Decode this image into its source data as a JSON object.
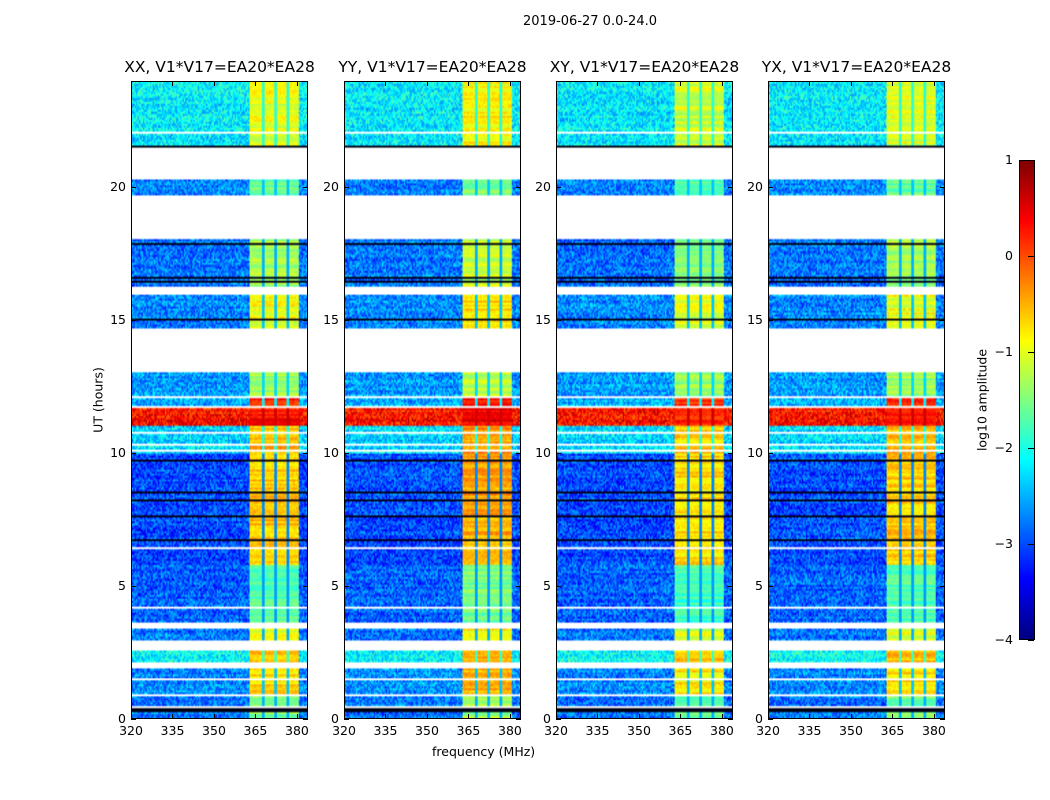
{
  "chart_data": {
    "type": "heatmap",
    "title": "2019-06-27 0.0-24.0",
    "xlabel": "frequency (MHz)",
    "ylabel": "UT (hours)",
    "xlim": [
      320,
      384
    ],
    "ylim": [
      0,
      24
    ],
    "xticks": [
      "320",
      "335",
      "350",
      "365",
      "380"
    ],
    "xtick_values": [
      320,
      335,
      350,
      365,
      380
    ],
    "yticks": [
      "0",
      "5",
      "10",
      "15",
      "20"
    ],
    "ytick_values": [
      0,
      5,
      10,
      15,
      20
    ],
    "panels": [
      {
        "title": "XX, V1*V17=EA20*EA28",
        "band_offset": 0.0
      },
      {
        "title": "YY, V1*V17=EA20*EA28",
        "band_offset": 0.15
      },
      {
        "title": "XY, V1*V17=EA20*EA28",
        "band_offset": -0.1
      },
      {
        "title": "YX, V1*V17=EA20*EA28",
        "band_offset": -0.05
      }
    ],
    "colorbar": {
      "label": "log10 amplitude",
      "range": [
        -4,
        1
      ],
      "ticks": [
        "1",
        "0",
        "−1",
        "−2",
        "−3",
        "−4"
      ],
      "tick_values": [
        1,
        0,
        -1,
        -2,
        -3,
        -4
      ],
      "colormap": "jet"
    },
    "band_mhz": [
      363,
      381
    ],
    "band_gaps_mhz": [
      368,
      372.5,
      377
    ],
    "flagged_hours": [
      [
        20.3,
        21.5
      ],
      [
        18.05,
        19.7
      ],
      [
        15.95,
        16.3
      ],
      [
        13.05,
        14.7
      ],
      [
        3.35,
        3.6
      ],
      [
        2.6,
        2.9
      ],
      [
        0.8,
        0.9
      ]
    ],
    "segments_hours_bg_band": [
      [
        21.5,
        24.0,
        -2.2,
        -1.0
      ],
      [
        19.7,
        20.3,
        -2.7,
        -1.6
      ],
      [
        16.3,
        18.05,
        -2.8,
        -1.3
      ],
      [
        14.7,
        15.95,
        -2.7,
        -0.9
      ],
      [
        12.1,
        13.05,
        -2.6,
        -1.3
      ],
      [
        11.8,
        12.1,
        -2.5,
        0.2
      ],
      [
        11.0,
        11.7,
        0.3,
        0.3
      ],
      [
        10.0,
        11.0,
        -2.3,
        -0.5
      ],
      [
        5.8,
        10.0,
        -3.0,
        -0.6
      ],
      [
        3.6,
        5.8,
        -2.9,
        -1.7
      ],
      [
        2.9,
        3.35,
        -2.8,
        -1.0
      ],
      [
        2.1,
        2.6,
        -2.1,
        -0.5
      ],
      [
        0.9,
        1.9,
        -2.7,
        -0.7
      ],
      [
        0.0,
        0.8,
        -2.8,
        -1.5
      ]
    ]
  }
}
